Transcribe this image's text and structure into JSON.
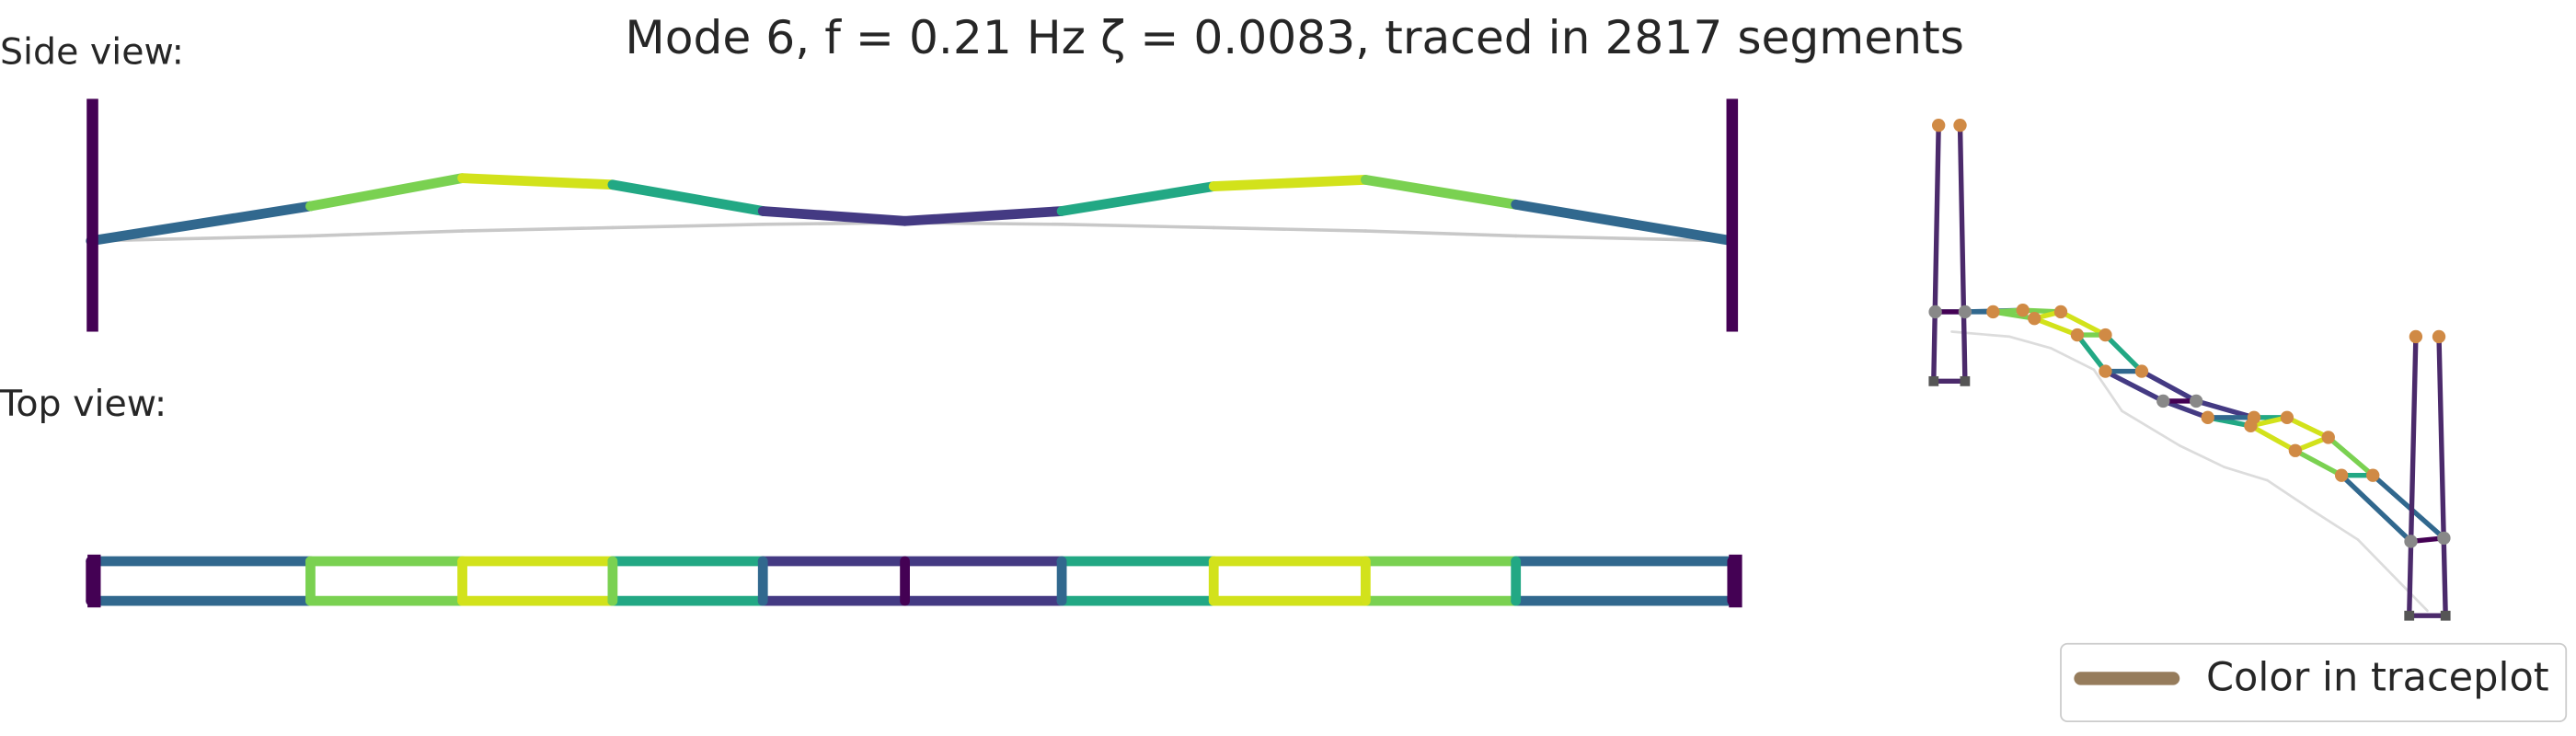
{
  "title": "Mode 6, f = 0.21 Hz   ζ = 0.0083,  traced in 2817 segments",
  "side_view_label": "Side view:",
  "top_view_label": "Top view:",
  "legend": {
    "label": "Color in traceplot"
  }
}
